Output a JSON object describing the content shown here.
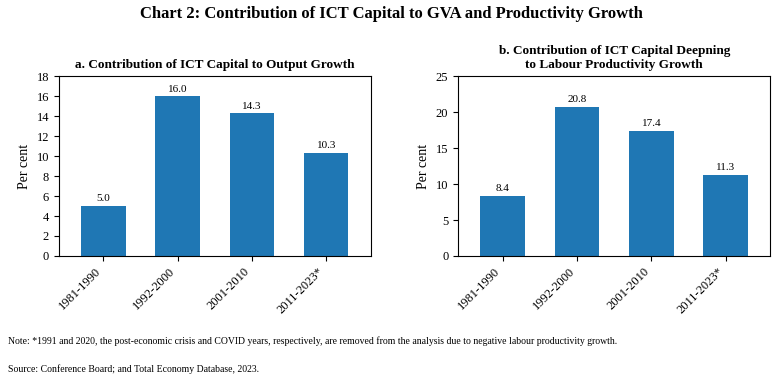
{
  "title": "Chart 2: Contribution of ICT Capital to GVA and Productivity Growth",
  "annotations": [
    "Note: *1991 and 2020, the post-economic crisis and COVID years, respectively, are removed from the analysis due to negative labour productivity growth.",
    "Source: Conference Board; and Total Economy Database, 2023."
  ],
  "chart_data": [
    {
      "type": "bar",
      "title": "a. Contribution of ICT Capital to Output Growth",
      "categories": [
        "1981-1990",
        "1992-2000",
        "2001-2010",
        "2011-2023*"
      ],
      "values": [
        5.0,
        16.0,
        14.3,
        10.3
      ],
      "ylabel": "Per cent",
      "ylim": [
        0,
        18
      ],
      "yticks": [
        0,
        2,
        4,
        6,
        8,
        10,
        12,
        14,
        16,
        18
      ],
      "grid": false,
      "data_labels": true
    },
    {
      "type": "bar",
      "title": "b. Contribution of ICT Capital Deepning\nto Labour Productivity Growth",
      "categories": [
        "1981-1990",
        "1992-2000",
        "2001-2010",
        "2011-2023*"
      ],
      "values": [
        8.4,
        20.8,
        17.4,
        11.3
      ],
      "ylabel": "Per cent",
      "ylim": [
        0,
        25
      ],
      "yticks": [
        0,
        5,
        10,
        15,
        20,
        25
      ],
      "grid": false,
      "data_labels": true
    }
  ]
}
